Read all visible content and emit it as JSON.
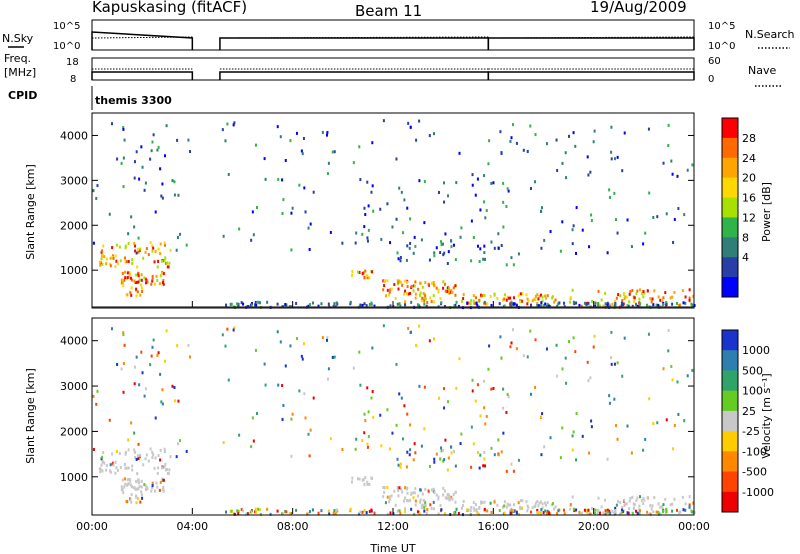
{
  "header": {
    "station": "Kapuskasing (fitACF)",
    "beam": "Beam 11",
    "date": "19/Aug/2009"
  },
  "panels": {
    "nsky_label": "N.Sky",
    "nsky_ticks": [
      "10^5",
      "10^0"
    ],
    "nsearch_label": "N.Search",
    "nsearch_ticks": [
      "10^5",
      "10^0"
    ],
    "freq_label": "Freq.",
    "freq_unit": "[MHz]",
    "freq_ticks": [
      "18",
      "8"
    ],
    "nave_label": "Nave",
    "nave_ticks": [
      "60",
      "0"
    ],
    "cpid_label": "CPID",
    "cpid_value": "themis 3300"
  },
  "chart_data": [
    {
      "type": "heatmap",
      "name": "power",
      "ylabel": "Slant Range [km]",
      "ylim": [
        180,
        4500
      ],
      "yticks": [
        "1000",
        "2000",
        "3000",
        "4000"
      ],
      "ytick_values": [
        1000,
        2000,
        3000,
        4000
      ],
      "colorbar_label": "Power [dB]",
      "colorbar_ticks": [
        "28",
        "24",
        "20",
        "16",
        "12",
        "8",
        "4"
      ],
      "colorbar_colors": [
        "#ff0000",
        "#ff6a00",
        "#ffa500",
        "#ffd800",
        "#a8e000",
        "#2fb34a",
        "#2f7f78",
        "#2a3ea8",
        "#0000ff"
      ]
    },
    {
      "type": "heatmap",
      "name": "velocity",
      "ylabel": "Slant Range [km]",
      "xlabel": "Time UT",
      "ylim": [
        180,
        4500
      ],
      "yticks": [
        "1000",
        "2000",
        "3000",
        "4000"
      ],
      "ytick_values": [
        1000,
        2000,
        3000,
        4000
      ],
      "xticks": [
        "00:00",
        "04:00",
        "08:00",
        "12:00",
        "16:00",
        "20:00",
        "00:00"
      ],
      "xtick_hours": [
        0,
        4,
        8,
        12,
        16,
        20,
        24
      ],
      "colorbar_label": "Velocity [m s⁻¹]",
      "colorbar_ticks": [
        "1000",
        "500",
        "100",
        "25",
        "-25",
        "-100",
        "-500",
        "-1000"
      ],
      "colorbar_colors": [
        "#1a33cc",
        "#2e7fb0",
        "#2fa36a",
        "#66cc22",
        "#c8c8c8",
        "#ffcc00",
        "#ff8800",
        "#ff4400",
        "#ee0000"
      ]
    }
  ],
  "data_gap_hours": [
    4.0,
    5.1
  ],
  "echo_regions": [
    {
      "t": [
        0.2,
        3.1
      ],
      "r": [
        1100,
        1650
      ],
      "density": 0.55
    },
    {
      "t": [
        1.0,
        2.9
      ],
      "r": [
        700,
        1000
      ],
      "density": 0.6
    },
    {
      "t": [
        1.2,
        2.0
      ],
      "r": [
        450,
        700
      ],
      "density": 0.4
    },
    {
      "t": [
        10.3,
        11.2
      ],
      "r": [
        850,
        1050
      ],
      "density": 0.35
    },
    {
      "t": [
        11.5,
        14.5
      ],
      "r": [
        300,
        800
      ],
      "density": 0.65
    },
    {
      "t": [
        12.0,
        17.0
      ],
      "r": [
        1150,
        1850
      ],
      "density": 0.2
    },
    {
      "t": [
        14.5,
        18.5
      ],
      "r": [
        280,
        520
      ],
      "density": 0.35
    },
    {
      "t": [
        19.0,
        24.0
      ],
      "r": [
        200,
        600
      ],
      "density": 0.35
    },
    {
      "t": [
        5.0,
        24.0
      ],
      "r": [
        200,
        320
      ],
      "density": 0.2
    }
  ]
}
